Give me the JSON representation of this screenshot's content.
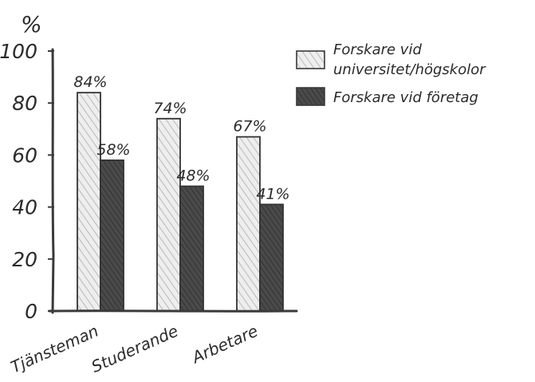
{
  "chart_data": {
    "type": "bar",
    "ylabel": "%",
    "ylim": [
      0,
      100
    ],
    "yticks": [
      "0",
      "20",
      "40",
      "60",
      "80",
      "100"
    ],
    "categories": [
      "Tjänsteman",
      "Studerande",
      "Arbetare"
    ],
    "series": [
      {
        "name": "Forskare vid universitet/högskolor",
        "legend_lines": [
          "Forskare vid",
          "universitet/högskolor"
        ],
        "values": [
          84,
          74,
          67
        ],
        "labels": [
          "84%",
          "74%",
          "67%"
        ],
        "color": "#e4e4e4"
      },
      {
        "name": "Forskare vid företag",
        "legend_lines": [
          "Forskare vid företag"
        ],
        "values": [
          58,
          48,
          41
        ],
        "labels": [
          "58%",
          "48%",
          "41%"
        ],
        "color": "#454545"
      }
    ],
    "legend_position": "top-right",
    "grid": false,
    "style": "hand-drawn pencil sketch"
  }
}
